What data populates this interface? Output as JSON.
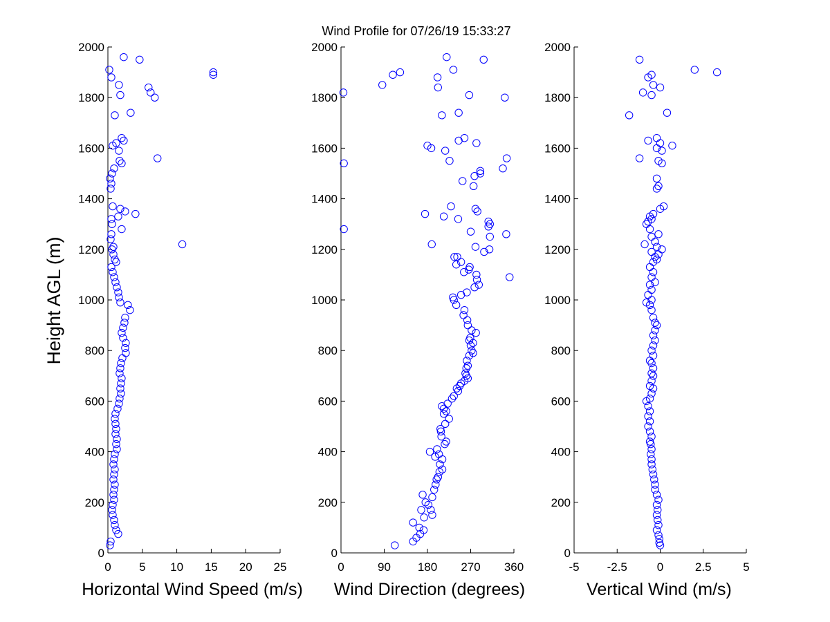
{
  "chart_data": [
    {
      "type": "scatter",
      "title": "Wind Profile for  07/26/19 15:33:27",
      "xlabel": "Horizontal Wind Speed (m/s)",
      "ylabel": "Height AGL (m)",
      "xlim": [
        0,
        25
      ],
      "ylim": [
        0,
        2000
      ],
      "xticks": [
        0,
        5,
        10,
        15,
        20,
        25
      ],
      "xtick_labels": [
        "0",
        "5",
        "10",
        "15",
        "20",
        "25"
      ],
      "yticks": [
        0,
        200,
        400,
        600,
        800,
        1000,
        1200,
        1400,
        1600,
        1800,
        2000
      ],
      "ytick_labels": [
        "0",
        "200",
        "400",
        "600",
        "800",
        "1000",
        "1200",
        "1400",
        "1600",
        "1800",
        "2000"
      ],
      "marker": "circle",
      "color": "#0000ff",
      "points": [
        [
          0.3,
          30
        ],
        [
          0.4,
          45
        ],
        [
          1.5,
          75
        ],
        [
          1.2,
          90
        ],
        [
          1.0,
          110
        ],
        [
          0.9,
          130
        ],
        [
          0.7,
          150
        ],
        [
          0.6,
          170
        ],
        [
          0.7,
          190
        ],
        [
          0.9,
          210
        ],
        [
          0.8,
          230
        ],
        [
          0.9,
          250
        ],
        [
          1.0,
          270
        ],
        [
          0.8,
          290
        ],
        [
          0.9,
          310
        ],
        [
          1.0,
          330
        ],
        [
          0.8,
          350
        ],
        [
          0.9,
          370
        ],
        [
          1.0,
          390
        ],
        [
          1.3,
          410
        ],
        [
          1.2,
          430
        ],
        [
          1.3,
          450
        ],
        [
          1.1,
          470
        ],
        [
          1.2,
          490
        ],
        [
          1.1,
          510
        ],
        [
          1.0,
          530
        ],
        [
          1.1,
          550
        ],
        [
          1.4,
          570
        ],
        [
          1.6,
          590
        ],
        [
          1.7,
          610
        ],
        [
          1.9,
          630
        ],
        [
          1.8,
          650
        ],
        [
          1.9,
          670
        ],
        [
          2.0,
          690
        ],
        [
          1.7,
          710
        ],
        [
          1.8,
          730
        ],
        [
          1.9,
          750
        ],
        [
          2.1,
          770
        ],
        [
          2.6,
          790
        ],
        [
          2.5,
          810
        ],
        [
          2.6,
          830
        ],
        [
          2.2,
          850
        ],
        [
          2.0,
          870
        ],
        [
          2.2,
          890
        ],
        [
          2.4,
          910
        ],
        [
          2.5,
          930
        ],
        [
          3.2,
          960
        ],
        [
          2.9,
          980
        ],
        [
          1.8,
          990
        ],
        [
          1.6,
          1010
        ],
        [
          1.5,
          1030
        ],
        [
          1.3,
          1050
        ],
        [
          1.1,
          1070
        ],
        [
          0.9,
          1090
        ],
        [
          0.7,
          1110
        ],
        [
          0.5,
          1130
        ],
        [
          1.2,
          1150
        ],
        [
          1.0,
          1160
        ],
        [
          0.8,
          1180
        ],
        [
          0.6,
          1200
        ],
        [
          0.8,
          1210
        ],
        [
          10.8,
          1220
        ],
        [
          0.4,
          1240
        ],
        [
          0.5,
          1260
        ],
        [
          2.0,
          1280
        ],
        [
          0.6,
          1300
        ],
        [
          0.5,
          1320
        ],
        [
          1.5,
          1330
        ],
        [
          2.5,
          1350
        ],
        [
          4.0,
          1340
        ],
        [
          1.8,
          1360
        ],
        [
          0.7,
          1370
        ],
        [
          0.4,
          1440
        ],
        [
          0.5,
          1460
        ],
        [
          0.3,
          1480
        ],
        [
          0.6,
          1500
        ],
        [
          0.9,
          1520
        ],
        [
          2.0,
          1540
        ],
        [
          1.7,
          1550
        ],
        [
          7.2,
          1560
        ],
        [
          1.6,
          1590
        ],
        [
          0.7,
          1610
        ],
        [
          1.2,
          1620
        ],
        [
          2.3,
          1630
        ],
        [
          2.0,
          1640
        ],
        [
          3.3,
          1740
        ],
        [
          1.0,
          1730
        ],
        [
          6.8,
          1800
        ],
        [
          1.8,
          1810
        ],
        [
          6.2,
          1820
        ],
        [
          5.9,
          1840
        ],
        [
          1.6,
          1850
        ],
        [
          0.5,
          1880
        ],
        [
          15.3,
          1890
        ],
        [
          15.3,
          1900
        ],
        [
          0.2,
          1910
        ],
        [
          4.6,
          1950
        ],
        [
          2.3,
          1960
        ]
      ]
    },
    {
      "type": "scatter",
      "xlabel": "Wind Direction (degrees)",
      "xlim": [
        0,
        360
      ],
      "ylim": [
        0,
        2000
      ],
      "xticks": [
        0,
        90,
        180,
        270,
        360
      ],
      "xtick_labels": [
        "0",
        "90",
        "180",
        "270",
        "360"
      ],
      "yticks": [
        0,
        200,
        400,
        600,
        800,
        1000,
        1200,
        1400,
        1600,
        1800,
        2000
      ],
      "ytick_labels": [
        "0",
        "200",
        "400",
        "600",
        "800",
        "1000",
        "1200",
        "1400",
        "1600",
        "1800",
        "2000"
      ],
      "marker": "circle",
      "color": "#0000ff",
      "points": [
        [
          112,
          30
        ],
        [
          150,
          45
        ],
        [
          157,
          60
        ],
        [
          165,
          75
        ],
        [
          172,
          90
        ],
        [
          163,
          100
        ],
        [
          150,
          120
        ],
        [
          173,
          140
        ],
        [
          190,
          150
        ],
        [
          187,
          170
        ],
        [
          167,
          170
        ],
        [
          182,
          190
        ],
        [
          176,
          200
        ],
        [
          190,
          220
        ],
        [
          170,
          230
        ],
        [
          194,
          250
        ],
        [
          197,
          270
        ],
        [
          199,
          290
        ],
        [
          202,
          300
        ],
        [
          205,
          320
        ],
        [
          211,
          330
        ],
        [
          206,
          350
        ],
        [
          211,
          370
        ],
        [
          196,
          380
        ],
        [
          204,
          390
        ],
        [
          185,
          400
        ],
        [
          200,
          410
        ],
        [
          216,
          430
        ],
        [
          219,
          440
        ],
        [
          209,
          460
        ],
        [
          208,
          480
        ],
        [
          207,
          490
        ],
        [
          217,
          510
        ],
        [
          225,
          530
        ],
        [
          214,
          550
        ],
        [
          219,
          560
        ],
        [
          214,
          570
        ],
        [
          210,
          580
        ],
        [
          222,
          590
        ],
        [
          231,
          610
        ],
        [
          235,
          620
        ],
        [
          244,
          640
        ],
        [
          241,
          650
        ],
        [
          247,
          660
        ],
        [
          250,
          670
        ],
        [
          257,
          680
        ],
        [
          264,
          690
        ],
        [
          261,
          700
        ],
        [
          259,
          710
        ],
        [
          261,
          730
        ],
        [
          264,
          740
        ],
        [
          262,
          760
        ],
        [
          267,
          780
        ],
        [
          275,
          790
        ],
        [
          272,
          800
        ],
        [
          270,
          820
        ],
        [
          275,
          830
        ],
        [
          267,
          840
        ],
        [
          269,
          850
        ],
        [
          281,
          870
        ],
        [
          272,
          880
        ],
        [
          264,
          900
        ],
        [
          263,
          920
        ],
        [
          255,
          940
        ],
        [
          257,
          960
        ],
        [
          240,
          980
        ],
        [
          235,
          1000
        ],
        [
          233,
          1010
        ],
        [
          250,
          1020
        ],
        [
          262,
          1030
        ],
        [
          278,
          1050
        ],
        [
          287,
          1060
        ],
        [
          283,
          1080
        ],
        [
          282,
          1100
        ],
        [
          256,
          1110
        ],
        [
          266,
          1120
        ],
        [
          268,
          1130
        ],
        [
          240,
          1140
        ],
        [
          250,
          1150
        ],
        [
          242,
          1170
        ],
        [
          236,
          1170
        ],
        [
          280,
          1210
        ],
        [
          189,
          1220
        ],
        [
          298,
          1190
        ],
        [
          309,
          1200
        ],
        [
          344,
          1260
        ],
        [
          310,
          1250
        ],
        [
          270,
          1270
        ],
        [
          307,
          1290
        ],
        [
          310,
          1300
        ],
        [
          307,
          1310
        ],
        [
          244,
          1320
        ],
        [
          214,
          1330
        ],
        [
          284,
          1350
        ],
        [
          280,
          1360
        ],
        [
          229,
          1370
        ],
        [
          175,
          1340
        ],
        [
          276,
          1450
        ],
        [
          253,
          1470
        ],
        [
          278,
          1490
        ],
        [
          290,
          1500
        ],
        [
          290,
          1510
        ],
        [
          337,
          1520
        ],
        [
          345,
          1560
        ],
        [
          6,
          1540
        ],
        [
          226,
          1550
        ],
        [
          217,
          1590
        ],
        [
          188,
          1600
        ],
        [
          180,
          1610
        ],
        [
          282,
          1620
        ],
        [
          257,
          1640
        ],
        [
          245,
          1630
        ],
        [
          341,
          1800
        ],
        [
          5,
          1820
        ],
        [
          86,
          1850
        ],
        [
          202,
          1840
        ],
        [
          267,
          1810
        ],
        [
          210,
          1730
        ],
        [
          245,
          1740
        ],
        [
          108,
          1890
        ],
        [
          123,
          1900
        ],
        [
          201,
          1880
        ],
        [
          234,
          1910
        ],
        [
          220,
          1960
        ],
        [
          297,
          1950
        ],
        [
          6,
          1280
        ],
        [
          351,
          1090
        ]
      ]
    },
    {
      "type": "scatter",
      "xlabel": "Vertical Wind (m/s)",
      "xlim": [
        -5,
        5
      ],
      "ylim": [
        0,
        2000
      ],
      "xticks": [
        -5,
        -2.5,
        0,
        2.5,
        5
      ],
      "xtick_labels": [
        "-5",
        "-2.5",
        "0",
        "2.5",
        "5"
      ],
      "yticks": [
        0,
        200,
        400,
        600,
        800,
        1000,
        1200,
        1400,
        1600,
        1800,
        2000
      ],
      "ytick_labels": [
        "0",
        "200",
        "400",
        "600",
        "800",
        "1000",
        "1200",
        "1400",
        "1600",
        "1800",
        "2000"
      ],
      "marker": "circle",
      "color": "#0000ff",
      "points": [
        [
          0.0,
          30
        ],
        [
          -0.05,
          40
        ],
        [
          -0.05,
          55
        ],
        [
          -0.1,
          70
        ],
        [
          -0.2,
          90
        ],
        [
          -0.1,
          110
        ],
        [
          -0.15,
          130
        ],
        [
          -0.2,
          150
        ],
        [
          -0.15,
          170
        ],
        [
          -0.2,
          190
        ],
        [
          -0.1,
          210
        ],
        [
          -0.2,
          230
        ],
        [
          -0.3,
          250
        ],
        [
          -0.3,
          270
        ],
        [
          -0.35,
          290
        ],
        [
          -0.4,
          310
        ],
        [
          -0.45,
          330
        ],
        [
          -0.5,
          350
        ],
        [
          -0.5,
          370
        ],
        [
          -0.55,
          390
        ],
        [
          -0.5,
          410
        ],
        [
          -0.55,
          430
        ],
        [
          -0.6,
          440
        ],
        [
          -0.5,
          460
        ],
        [
          -0.6,
          480
        ],
        [
          -0.7,
          500
        ],
        [
          -0.6,
          520
        ],
        [
          -0.7,
          540
        ],
        [
          -0.6,
          560
        ],
        [
          -0.7,
          580
        ],
        [
          -0.8,
          600
        ],
        [
          -0.6,
          610
        ],
        [
          -0.5,
          630
        ],
        [
          -0.4,
          650
        ],
        [
          -0.6,
          660
        ],
        [
          -0.5,
          680
        ],
        [
          -0.4,
          700
        ],
        [
          -0.5,
          710
        ],
        [
          -0.4,
          730
        ],
        [
          -0.5,
          750
        ],
        [
          -0.6,
          760
        ],
        [
          -0.4,
          780
        ],
        [
          -0.5,
          800
        ],
        [
          -0.4,
          820
        ],
        [
          -0.3,
          840
        ],
        [
          -0.4,
          860
        ],
        [
          -0.3,
          880
        ],
        [
          -0.2,
          900
        ],
        [
          -0.3,
          910
        ],
        [
          -0.4,
          930
        ],
        [
          -0.5,
          960
        ],
        [
          -0.6,
          980
        ],
        [
          -0.8,
          990
        ],
        [
          -0.5,
          1000
        ],
        [
          -0.7,
          1020
        ],
        [
          -0.5,
          1040
        ],
        [
          -0.6,
          1060
        ],
        [
          -0.3,
          1070
        ],
        [
          -0.5,
          1090
        ],
        [
          -0.4,
          1110
        ],
        [
          -0.6,
          1130
        ],
        [
          -0.4,
          1150
        ],
        [
          -0.2,
          1160
        ],
        [
          -0.3,
          1170
        ],
        [
          -0.1,
          1180
        ],
        [
          -0.2,
          1210
        ],
        [
          -0.5,
          1190
        ],
        [
          0.1,
          1200
        ],
        [
          -0.9,
          1220
        ],
        [
          -0.3,
          1230
        ],
        [
          -0.5,
          1250
        ],
        [
          -0.1,
          1260
        ],
        [
          -0.6,
          1280
        ],
        [
          -0.8,
          1300
        ],
        [
          -0.7,
          1310
        ],
        [
          -0.5,
          1320
        ],
        [
          -0.6,
          1330
        ],
        [
          -0.4,
          1340
        ],
        [
          0.0,
          1360
        ],
        [
          0.2,
          1370
        ],
        [
          -0.2,
          1440
        ],
        [
          -0.1,
          1450
        ],
        [
          -0.2,
          1480
        ],
        [
          0.1,
          1540
        ],
        [
          -0.1,
          1550
        ],
        [
          -1.2,
          1560
        ],
        [
          0.1,
          1590
        ],
        [
          -0.2,
          1600
        ],
        [
          0.0,
          1620
        ],
        [
          0.7,
          1610
        ],
        [
          -0.7,
          1630
        ],
        [
          -0.2,
          1640
        ],
        [
          -1.8,
          1730
        ],
        [
          0.4,
          1740
        ],
        [
          -0.5,
          1810
        ],
        [
          -1.0,
          1820
        ],
        [
          0.0,
          1840
        ],
        [
          -0.4,
          1850
        ],
        [
          -0.7,
          1880
        ],
        [
          -0.5,
          1890
        ],
        [
          2.0,
          1910
        ],
        [
          3.3,
          1900
        ],
        [
          -1.2,
          1950
        ]
      ]
    }
  ]
}
